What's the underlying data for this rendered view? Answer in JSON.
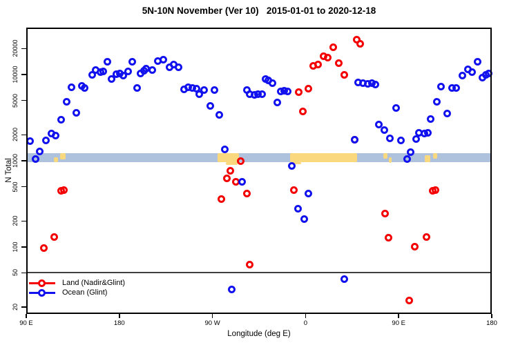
{
  "title": "5N-10N November (Ver 10)   2015-01-01 to 2020-12-18",
  "chart_data": {
    "type": "scatter",
    "title": "5N-10N November (Ver 10)   2015-01-01 to 2020-12-18",
    "xlabel": "Longitude (deg E)",
    "ylabel": "N Total",
    "x_domain": [
      90,
      540
    ],
    "y_domain": [
      16.7,
      35000
    ],
    "y_scale": "log",
    "grid": "off",
    "legend_position": "bottom-left",
    "x_ticks": [
      {
        "deg": 90,
        "label": "90 E"
      },
      {
        "deg": 180,
        "label": "180"
      },
      {
        "deg": 270,
        "label": "90 W"
      },
      {
        "deg": 360,
        "label": "0"
      },
      {
        "deg": 450,
        "label": "90 E"
      },
      {
        "deg": 540,
        "label": "180"
      }
    ],
    "y_ticks": [
      20,
      50,
      100,
      200,
      500,
      1000,
      2000,
      5000,
      10000,
      20000
    ],
    "ref_line_value": 50,
    "band": {
      "description": "latitude-strip land/ocean mask near N=1000",
      "top_value": 1225,
      "bottom_value": 964,
      "ocean_color": "#aec2dd",
      "land_color": "#fad87e",
      "land_patches": [
        [
          116.5,
          120.5,
          1100,
          964
        ],
        [
          122.5,
          128.0,
          1225,
          1040
        ],
        [
          275.0,
          295.5,
          1225,
          964
        ],
        [
          283.0,
          294.5,
          964,
          890
        ],
        [
          345.0,
          409.5,
          1225,
          964
        ],
        [
          346.0,
          356.0,
          964,
          915
        ],
        [
          435.0,
          439.0,
          1225,
          1060
        ],
        [
          440.5,
          443.0,
          1100,
          945
        ],
        [
          475.5,
          480.5,
          1150,
          964
        ],
        [
          483.0,
          487.5,
          1225,
          1050
        ]
      ]
    },
    "series": [
      {
        "name": "Land (Nadir&Glint)",
        "color": "#f40000",
        "points": [
          [
            353.1,
            6240
          ],
          [
            362.5,
            6840
          ],
          [
            357.5,
            3740
          ],
          [
            367.6,
            12700
          ],
          [
            372.1,
            13100
          ],
          [
            377.6,
            16400
          ],
          [
            381.6,
            15600
          ],
          [
            387.0,
            20700
          ],
          [
            392.1,
            13500
          ],
          [
            397.3,
            9880
          ],
          [
            409.8,
            25500
          ],
          [
            412.5,
            22500
          ],
          [
            407.6,
            1740
          ],
          [
            297.0,
            990
          ],
          [
            287.4,
            760
          ],
          [
            284.0,
            620
          ],
          [
            292.5,
            565
          ],
          [
            303.0,
            420
          ],
          [
            278.5,
            360
          ],
          [
            306.3,
            62
          ],
          [
            348.6,
            453
          ],
          [
            437.0,
            243
          ],
          [
            440.4,
            128
          ],
          [
            476.8,
            131
          ],
          [
            465.6,
            100
          ],
          [
            460.1,
            24
          ],
          [
            482.8,
            450
          ],
          [
            485.7,
            458
          ],
          [
            123.6,
            450
          ],
          [
            126.6,
            458
          ],
          [
            117.0,
            131
          ],
          [
            106.9,
            97
          ]
        ]
      },
      {
        "name": "Ocean (Glint)",
        "color": "#1212ee",
        "points": [
          [
            93.5,
            1680
          ],
          [
            98.7,
            1040
          ],
          [
            103.2,
            1280
          ],
          [
            109.2,
            1720
          ],
          [
            114.3,
            2050
          ],
          [
            118.1,
            1940
          ],
          [
            123.6,
            2980
          ],
          [
            128.8,
            4790
          ],
          [
            133.6,
            7150
          ],
          [
            138.1,
            3570
          ],
          [
            143.7,
            7440
          ],
          [
            146.3,
            6930
          ],
          [
            153.7,
            9820
          ],
          [
            157.0,
            11300
          ],
          [
            161.5,
            10600
          ],
          [
            164.2,
            10900
          ],
          [
            168.2,
            14000
          ],
          [
            172.7,
            8950
          ],
          [
            177.1,
            10000
          ],
          [
            180.4,
            10300
          ],
          [
            183.8,
            9690
          ],
          [
            188.2,
            10800
          ],
          [
            192.7,
            14000
          ],
          [
            197.1,
            6930
          ],
          [
            200.5,
            10300
          ],
          [
            203.8,
            11000
          ],
          [
            206.0,
            11700
          ],
          [
            211.6,
            11300
          ],
          [
            217.2,
            14400
          ],
          [
            222.8,
            14900
          ],
          [
            228.3,
            12100
          ],
          [
            232.8,
            13000
          ],
          [
            237.2,
            12200
          ],
          [
            242.4,
            6710
          ],
          [
            246.8,
            7150
          ],
          [
            250.6,
            6930
          ],
          [
            254.4,
            6840
          ],
          [
            257.3,
            5950
          ],
          [
            261.7,
            6580
          ],
          [
            267.7,
            4360
          ],
          [
            272.2,
            6580
          ],
          [
            276.7,
            3420
          ],
          [
            281.8,
            1360
          ],
          [
            288.9,
            32
          ],
          [
            298.5,
            566
          ],
          [
            303.0,
            6580
          ],
          [
            306.3,
            5870
          ],
          [
            310.8,
            5770
          ],
          [
            314.1,
            5870
          ],
          [
            318.1,
            5950
          ],
          [
            321.5,
            8950
          ],
          [
            323.7,
            8480
          ],
          [
            328.1,
            7930
          ],
          [
            332.6,
            4700
          ],
          [
            335.7,
            6400
          ],
          [
            339.3,
            6450
          ],
          [
            342.4,
            6400
          ],
          [
            346.8,
            874
          ],
          [
            352.7,
            280
          ],
          [
            358.7,
            210
          ],
          [
            362.5,
            420
          ],
          [
            397.7,
            42
          ],
          [
            407.8,
            1740
          ],
          [
            410.6,
            8150
          ],
          [
            415.5,
            7990
          ],
          [
            420.0,
            7840
          ],
          [
            424.0,
            7990
          ],
          [
            427.7,
            7590
          ],
          [
            431.1,
            2630
          ],
          [
            436.0,
            2270
          ],
          [
            441.8,
            1830
          ],
          [
            447.8,
            4100
          ],
          [
            452.3,
            1720
          ],
          [
            458.5,
            1040
          ],
          [
            461.8,
            1250
          ],
          [
            466.7,
            1800
          ],
          [
            469.6,
            2090
          ],
          [
            475.2,
            2050
          ],
          [
            478.5,
            2090
          ],
          [
            481.2,
            3020
          ],
          [
            486.8,
            4790
          ],
          [
            491.2,
            7270
          ],
          [
            496.8,
            3520
          ],
          [
            501.9,
            6950
          ],
          [
            505.3,
            6930
          ],
          [
            511.3,
            9690
          ],
          [
            516.9,
            11500
          ],
          [
            520.9,
            10600
          ],
          [
            526.5,
            14000
          ],
          [
            531.0,
            9120
          ],
          [
            534.3,
            9820
          ],
          [
            537.0,
            10300
          ]
        ]
      }
    ]
  }
}
